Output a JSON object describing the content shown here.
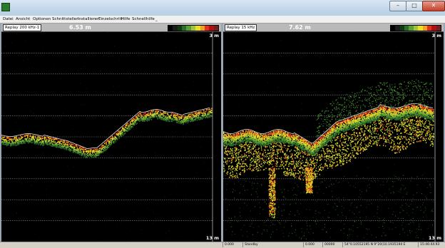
{
  "window": {
    "icon": "app-icon",
    "buttons": {
      "minimize": "–",
      "maximize": "□",
      "close": "✕"
    }
  },
  "menu": {
    "items": [
      "Datei",
      "Ansicht",
      "Optionen",
      "Schnittstellen",
      "Installieren",
      "Einzelschritt",
      "Hilfe",
      "Schnellhilfe",
      "_"
    ]
  },
  "left_panel": {
    "mode_label": "Replay 200 kHz-1",
    "depth": "6.53 m",
    "range_top": "3 m",
    "range_bottom": "13 m",
    "palette": [
      "#000000",
      "#1b1b1b",
      "#0d3b0d",
      "#2d6a2d",
      "#58a030",
      "#a0c040",
      "#e8e020",
      "#f0a020",
      "#e03020",
      "#b01010",
      "#702020"
    ]
  },
  "right_panel": {
    "mode_label": "Replay 15 kHz",
    "depth": "7.62 m",
    "range_top": "3 m",
    "range_bottom": "13 m",
    "palette": [
      "#000000",
      "#1b1b1b",
      "#0d3b0d",
      "#2d6a2d",
      "#58a030",
      "#a0c040",
      "#e8e020",
      "#f0a020",
      "#e03020",
      "#b01010",
      "#702020"
    ]
  },
  "status": {
    "fields": [
      "0.000",
      "Standby",
      "0.000",
      "00000",
      "54°0.10552195 N 9°20(10.1935194 E",
      "15:46:44.93"
    ]
  }
}
